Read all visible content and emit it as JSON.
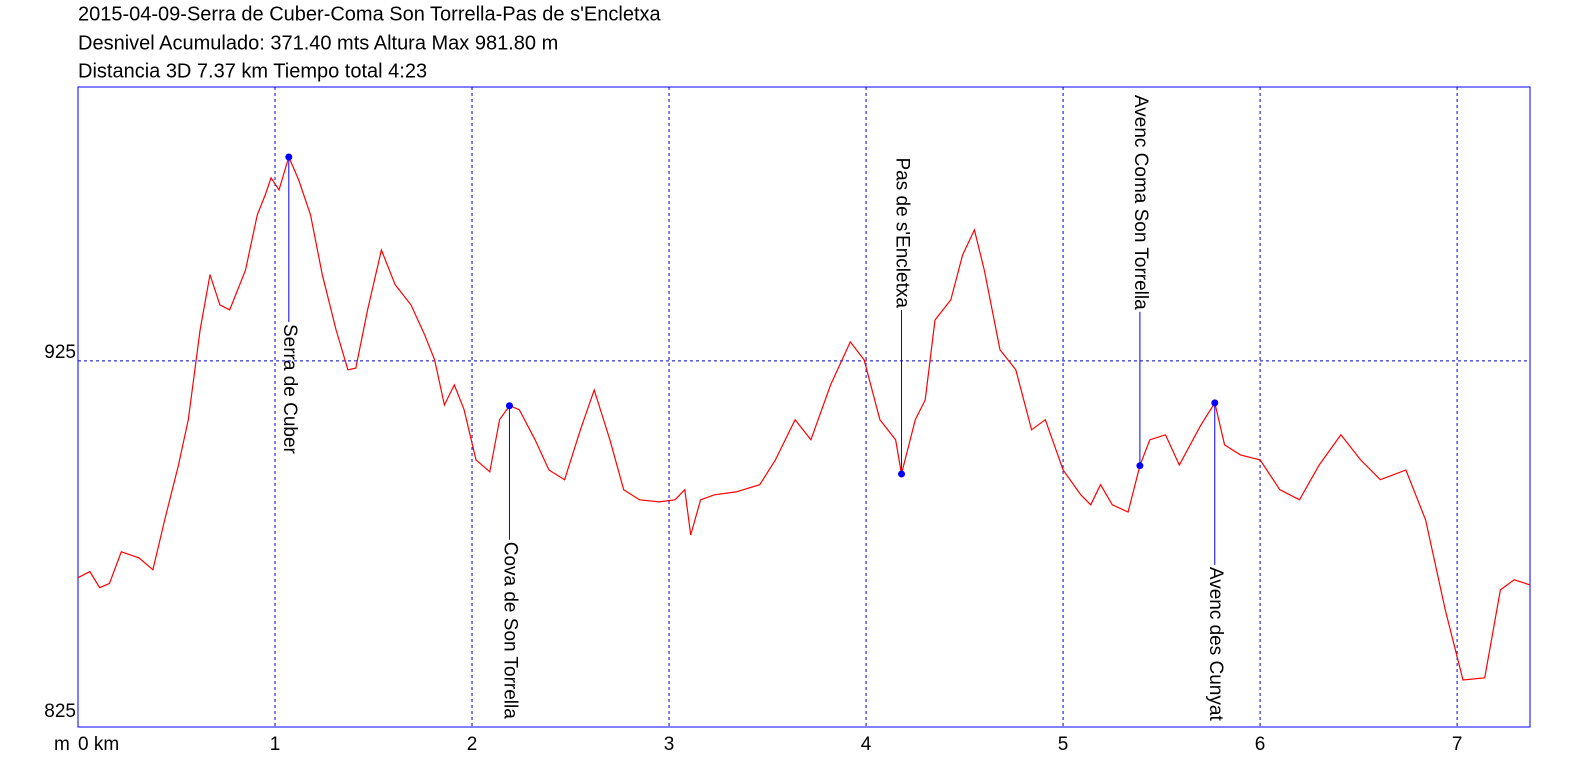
{
  "chart_data": {
    "type": "line",
    "title_lines": [
      "2015-04-09-Serra de Cuber-Coma Son Torrella-Pas de s'Encletxa",
      "Desnivel Acumulado: 371.40 mts  Altura Max 981.80 m",
      "Distancia 3D 7.37 km  Tiempo total 4:23"
    ],
    "y_label": "m",
    "xlim": [
      0,
      7.37
    ],
    "ylim": [
      823,
      1001.3
    ],
    "xticks": [
      {
        "value": 0,
        "label": "0 km"
      },
      1,
      2,
      3,
      4,
      5,
      6,
      7
    ],
    "yticks": [
      825,
      925
    ],
    "grid": true,
    "grid_color": "#0000cc",
    "axis_color": "#0000ff",
    "marker_color": "#0000ff",
    "series": [
      {
        "color": "#ff0000",
        "x": [
          0,
          0.06,
          0.11,
          0.16,
          0.22,
          0.31,
          0.38,
          0.44,
          0.51,
          0.56,
          0.62,
          0.67,
          0.72,
          0.77,
          0.85,
          0.91,
          0.95,
          0.98,
          1.02,
          1.07,
          1.12,
          1.18,
          1.24,
          1.31,
          1.37,
          1.41,
          1.47,
          1.54,
          1.61,
          1.69,
          1.76,
          1.81,
          1.86,
          1.91,
          1.96,
          2.02,
          2.09,
          2.14,
          2.19,
          2.24,
          2.32,
          2.39,
          2.47,
          2.55,
          2.62,
          2.7,
          2.77,
          2.85,
          2.95,
          3.03,
          3.08,
          3.11,
          3.16,
          3.23,
          3.34,
          3.46,
          3.54,
          3.64,
          3.72,
          3.82,
          3.92,
          3.99,
          4.07,
          4.15,
          4.18,
          4.25,
          4.3,
          4.35,
          4.43,
          4.49,
          4.55,
          4.6,
          4.68,
          4.76,
          4.84,
          4.91,
          5.0,
          5.09,
          5.14,
          5.19,
          5.25,
          5.33,
          5.39,
          5.44,
          5.52,
          5.59,
          5.7,
          5.77,
          5.82,
          5.9,
          6.0,
          6.1,
          6.2,
          6.3,
          6.41,
          6.51,
          6.61,
          6.74,
          6.84,
          6.94,
          7.03,
          7.14,
          7.22,
          7.29,
          7.37
        ],
        "values": [
          864.6,
          866.3,
          861.8,
          863,
          871.8,
          870.1,
          866.8,
          880.7,
          896,
          908.6,
          933.6,
          949,
          940.6,
          939.2,
          950.3,
          965.7,
          971.2,
          976,
          972.6,
          981.8,
          975.4,
          965.7,
          949,
          933.6,
          922.5,
          923,
          939.2,
          955.9,
          946.2,
          940.6,
          932.2,
          925.3,
          912.7,
          918.3,
          911.4,
          897.4,
          894.1,
          908.6,
          912.5,
          911.4,
          903,
          894.6,
          891.9,
          905.8,
          916.9,
          903,
          889.1,
          886.3,
          885.7,
          886.3,
          889.1,
          876.5,
          886.3,
          887.7,
          888.5,
          890.5,
          897.4,
          908.6,
          903,
          918.3,
          930.3,
          925.3,
          908.6,
          903,
          893.5,
          908.6,
          914.1,
          936.4,
          942,
          954.5,
          961.5,
          950.3,
          928.1,
          922.5,
          905.8,
          908.6,
          894.6,
          887.7,
          884.9,
          890.5,
          884.9,
          882.9,
          895.8,
          903,
          904.4,
          896,
          907.2,
          913.3,
          901.6,
          898.8,
          897.4,
          889.1,
          886.3,
          896,
          904.4,
          897.4,
          891.9,
          894.6,
          880.7,
          855.6,
          836.1,
          836.7,
          861.2,
          864,
          862.6
        ]
      }
    ],
    "waypoints": [
      {
        "label": "Serra de Cuber",
        "x": 1.07,
        "y": 981.8
      },
      {
        "label": "Cova de Son Torrella",
        "x": 2.19,
        "y": 912.5
      },
      {
        "label": "Pas de s'Encletxa",
        "x": 4.18,
        "y": 893.5
      },
      {
        "label": "Avenc Coma Son Torrella",
        "x": 5.39,
        "y": 895.8
      },
      {
        "label": "Avenc des Cunyat",
        "x": 5.77,
        "y": 913.3
      }
    ]
  }
}
